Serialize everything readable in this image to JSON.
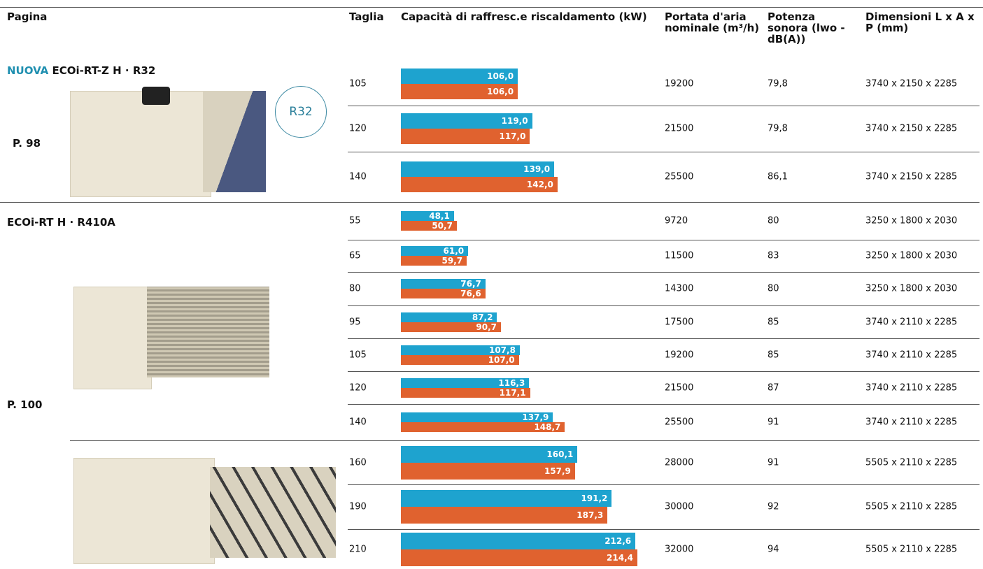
{
  "header": {
    "page": "Pagina",
    "size": "Taglia",
    "capacity": "Capacità di raffresc.e riscaldamento (kW)",
    "airflow": "Portata d'aria nominale (m³/h)",
    "sound": "Potenza sonora (lwo - dB(A))",
    "dims": "Dimensioni L x A x P (mm)"
  },
  "sections": [
    {
      "badge": "NUOVA",
      "name": "ECOi-RT-Z H · R32",
      "page": "P. 98",
      "refrigerant": "R32",
      "rows": [
        {
          "size": "105",
          "cooling": {
            "value": 106.0,
            "label": "106,0"
          },
          "heating": {
            "value": 106.0,
            "label": "106,0"
          },
          "airflow": "19200",
          "sound": "79,8",
          "dims": "3740 x 2150 x 2285"
        },
        {
          "size": "120",
          "cooling": {
            "value": 119.0,
            "label": "119,0"
          },
          "heating": {
            "value": 117.0,
            "label": "117,0"
          },
          "airflow": "21500",
          "sound": "79,8",
          "dims": "3740 x 2150 x 2285"
        },
        {
          "size": "140",
          "cooling": {
            "value": 139.0,
            "label": "139,0"
          },
          "heating": {
            "value": 142.0,
            "label": "142,0"
          },
          "airflow": "25500",
          "sound": "86,1",
          "dims": "3740 x 2150 x 2285"
        }
      ]
    },
    {
      "name": "ECOi-RT H · R410A",
      "page": "P. 100",
      "rows": [
        {
          "size": "55",
          "cooling": {
            "value": 48.1,
            "label": "48,1"
          },
          "heating": {
            "value": 50.7,
            "label": "50,7"
          },
          "airflow": "9720",
          "sound": "80",
          "dims": "3250 x 1800 x 2030"
        },
        {
          "size": "65",
          "cooling": {
            "value": 61.0,
            "label": "61,0"
          },
          "heating": {
            "value": 59.7,
            "label": "59,7"
          },
          "airflow": "11500",
          "sound": "83",
          "dims": "3250 x 1800 x 2030"
        },
        {
          "size": "80",
          "cooling": {
            "value": 76.7,
            "label": "76,7"
          },
          "heating": {
            "value": 76.6,
            "label": "76,6"
          },
          "airflow": "14300",
          "sound": "80",
          "dims": "3250 x 1800 x 2030"
        },
        {
          "size": "95",
          "cooling": {
            "value": 87.2,
            "label": "87,2"
          },
          "heating": {
            "value": 90.7,
            "label": "90,7"
          },
          "airflow": "17500",
          "sound": "85",
          "dims": "3740 x 2110 x 2285"
        },
        {
          "size": "105",
          "cooling": {
            "value": 107.8,
            "label": "107,8"
          },
          "heating": {
            "value": 107.0,
            "label": "107,0"
          },
          "airflow": "19200",
          "sound": "85",
          "dims": "3740 x 2110 x 2285"
        },
        {
          "size": "120",
          "cooling": {
            "value": 116.3,
            "label": "116,3"
          },
          "heating": {
            "value": 117.1,
            "label": "117,1"
          },
          "airflow": "21500",
          "sound": "87",
          "dims": "3740 x 2110 x 2285"
        },
        {
          "size": "140",
          "cooling": {
            "value": 137.9,
            "label": "137,9"
          },
          "heating": {
            "value": 148.7,
            "label": "148,7"
          },
          "airflow": "25500",
          "sound": "91",
          "dims": "3740 x 2110 x 2285"
        },
        {
          "size": "160",
          "cooling": {
            "value": 160.1,
            "label": "160,1"
          },
          "heating": {
            "value": 157.9,
            "label": "157,9"
          },
          "airflow": "28000",
          "sound": "91",
          "dims": "5505 x 2110 x 2285"
        },
        {
          "size": "190",
          "cooling": {
            "value": 191.2,
            "label": "191,2"
          },
          "heating": {
            "value": 187.3,
            "label": "187,3"
          },
          "airflow": "30000",
          "sound": "92",
          "dims": "5505 x 2110 x 2285"
        },
        {
          "size": "210",
          "cooling": {
            "value": 212.6,
            "label": "212,6"
          },
          "heating": {
            "value": 214.4,
            "label": "214,4"
          },
          "airflow": "32000",
          "sound": "94",
          "dims": "5505 x 2110 x 2285"
        }
      ]
    }
  ]
}
